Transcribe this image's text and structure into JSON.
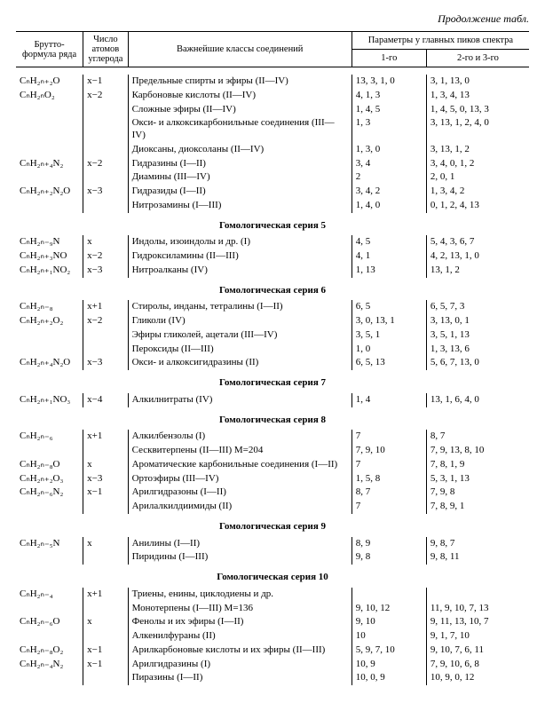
{
  "continuation": "Продолжение табл.",
  "headers": {
    "formula": "Брутто-формула ряда",
    "carbon": "Число атомов углерода",
    "classes": "Важнейшие классы соединений",
    "params": "Параметры y главных пиков спектра",
    "p1": "1-го",
    "p23": "2-го и 3-го"
  },
  "sections": {
    "s5": "Гомологическая серия 5",
    "s6": "Гомологическая серия 6",
    "s7": "Гомологическая серия 7",
    "s8": "Гомологическая серия 8",
    "s9": "Гомологическая серия 9",
    "s10": "Гомологическая серия 10"
  },
  "rows": {
    "g0": [
      {
        "f": "CₙH₂ₙ₊₂O",
        "c": "x−1",
        "cls": "Предельные спирты и эфиры (II—IV)",
        "p1": "13, 3, 1, 0",
        "p23": "3, 1, 13, 0"
      },
      {
        "f": "CₙH₂ₙO₂",
        "c": "x−2",
        "cls": "Карбоновые кислоты (II—IV)",
        "p1": "4, 1, 3",
        "p23": "1, 3, 4, 13"
      },
      {
        "f": "",
        "c": "",
        "cls": "Сложные эфиры (II—IV)",
        "p1": "1, 4, 5",
        "p23": "1, 4, 5, 0, 13, 3"
      },
      {
        "f": "",
        "c": "",
        "cls": "Окси- и алкоксикарбонильные соединения (III—IV)",
        "p1": "1, 3",
        "p23": "3, 13, 1, 2, 4, 0"
      },
      {
        "f": "",
        "c": "",
        "cls": "Диоксаны, диоксоланы (II—IV)",
        "p1": "1, 3, 0",
        "p23": "3, 13, 1, 2"
      },
      {
        "f": "CₙH₂ₙ₊₄N₂",
        "c": "x−2",
        "cls": "Гидразины (I—II)",
        "p1": "3, 4",
        "p23": "3, 4, 0, 1, 2"
      },
      {
        "f": "",
        "c": "",
        "cls": "Диамины (III—IV)",
        "p1": "2",
        "p23": "2, 0, 1"
      },
      {
        "f": "CₙH₂ₙ₊₂N₂O",
        "c": "x−3",
        "cls": "Гидразиды (I—II)",
        "p1": "3, 4, 2",
        "p23": "1, 3, 4, 2"
      },
      {
        "f": "",
        "c": "",
        "cls": "Нитрозамины (I—III)",
        "p1": "1, 4, 0",
        "p23": "0, 1, 2, 4, 13"
      }
    ],
    "g5": [
      {
        "f": "CₙH₂ₙ₋₉N",
        "c": "x",
        "cls": "Индолы, изоиндолы и др. (I)",
        "p1": "4, 5",
        "p23": "5, 4, 3, 6, 7"
      },
      {
        "f": "CₙH₂ₙ₊₃NO",
        "c": "x−2",
        "cls": "Гидроксиламины (II—III)",
        "p1": "4, 1",
        "p23": "4, 2, 13, 1, 0"
      },
      {
        "f": "CₙH₂ₙ₊₁NO₂",
        "c": "x−3",
        "cls": "Нитроалканы (IV)",
        "p1": "1, 13",
        "p23": "13, 1, 2"
      }
    ],
    "g6": [
      {
        "f": "CₙH₂ₙ₋₈",
        "c": "x+1",
        "cls": "Стиролы, инданы, тетралины (I—II)",
        "p1": "6, 5",
        "p23": "6, 5, 7, 3"
      },
      {
        "f": "CₙH₂ₙ₊₂O₂",
        "c": "x−2",
        "cls": "Гликоли (IV)",
        "p1": "3, 0, 13, 1",
        "p23": "3, 13, 0, 1"
      },
      {
        "f": "",
        "c": "",
        "cls": "Эфиры гликолей, ацетали (III—IV)",
        "p1": "3, 5, 1",
        "p23": "3, 5, 1, 13"
      },
      {
        "f": "",
        "c": "",
        "cls": "Пероксиды (II—III)",
        "p1": "1, 0",
        "p23": "1, 3, 13, 6"
      },
      {
        "f": "CₙH₂ₙ₊₄N₂O",
        "c": "x−3",
        "cls": "Окси- и алкоксигидразины (II)",
        "p1": "6, 5, 13",
        "p23": "5, 6, 7, 13, 0"
      }
    ],
    "g7": [
      {
        "f": "CₙH₂ₙ₊₁NO₃",
        "c": "x−4",
        "cls": "Алкилнитраты (IV)",
        "p1": "1, 4",
        "p23": "13, 1, 6, 4, 0"
      }
    ],
    "g8": [
      {
        "f": "CₙH₂ₙ₋₆",
        "c": "x+1",
        "cls": "Алкилбензолы (I)",
        "p1": "7",
        "p23": "8, 7"
      },
      {
        "f": "",
        "c": "",
        "cls": "Сесквитерпены (II—III)  M=204",
        "p1": "7, 9, 10",
        "p23": "7, 9, 13, 8, 10"
      },
      {
        "f": "CₙH₂ₙ₋₈O",
        "c": "x",
        "cls": "Ароматические карбонильные соединения (I—II)",
        "p1": "7",
        "p23": "7, 8, 1, 9"
      },
      {
        "f": "CₙH₂ₙ₊₂O₃",
        "c": "x−3",
        "cls": "Ортоэфиры (III—IV)",
        "p1": "1, 5, 8",
        "p23": "5, 3, 1, 13"
      },
      {
        "f": "CₙH₂ₙ₋₆N₂",
        "c": "x−1",
        "cls": "Арилгидразоны (I—II)",
        "p1": "8, 7",
        "p23": "7, 9, 8"
      },
      {
        "f": "",
        "c": "",
        "cls": "Арилалкилдиимиды (II)",
        "p1": "7",
        "p23": "7, 8, 9, 1"
      }
    ],
    "g9": [
      {
        "f": "CₙH₂ₙ₋₅N",
        "c": "x",
        "cls": "Анилины (I—II)",
        "p1": "8, 9",
        "p23": "9, 8, 7"
      },
      {
        "f": "",
        "c": "",
        "cls": "Пиридины (I—III)",
        "p1": "9, 8",
        "p23": "9, 8, 11"
      }
    ],
    "g10": [
      {
        "f": "CₙH₂ₙ₋₄",
        "c": "x+1",
        "cls": "Триены, енины, циклодиены и др.",
        "p1": "",
        "p23": ""
      },
      {
        "f": "",
        "c": "",
        "cls": "Монотерпены (I—III)  M=136",
        "p1": "9, 10, 12",
        "p23": "11, 9, 10, 7, 13"
      },
      {
        "f": "CₙH₂ₙ₋₆O",
        "c": "x",
        "cls": "Фенолы и их эфиры (I—II)",
        "p1": "9, 10",
        "p23": "9, 11, 13, 10, 7"
      },
      {
        "f": "",
        "c": "",
        "cls": "Алкенилфураны (II)",
        "p1": "10",
        "p23": "9, 1, 7, 10"
      },
      {
        "f": "CₙH₂ₙ₋₈O₂",
        "c": "x−1",
        "cls": "Арилкарбоновые кислоты и их эфиры (II—III)",
        "p1": "5, 9, 7, 10",
        "p23": "9, 10, 7, 6, 11"
      },
      {
        "f": "CₙH₂ₙ₋₄N₂",
        "c": "x−1",
        "cls": "Арилгидразины (I)",
        "p1": "10, 9",
        "p23": "7, 9, 10, 6, 8"
      },
      {
        "f": "",
        "c": "",
        "cls": "Пиразины (I—II)",
        "p1": "10, 0, 9",
        "p23": "10, 9, 0, 12"
      }
    ]
  }
}
